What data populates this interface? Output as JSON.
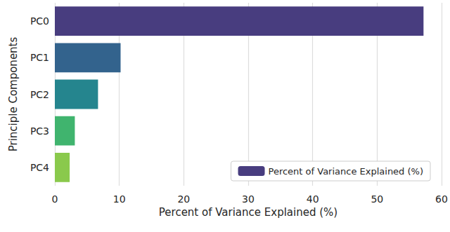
{
  "chart_data": {
    "type": "bar",
    "orientation": "horizontal",
    "x_label": "Percent of Variance Explained (%)",
    "y_label": "Principle Components",
    "categories": [
      "PC0",
      "PC1",
      "PC2",
      "PC3",
      "PC4"
    ],
    "series": [
      {
        "name": "Percent of Variance Explained (%)",
        "values": [
          57.2,
          10.2,
          6.7,
          3.1,
          2.3
        ]
      }
    ],
    "colors": [
      "#483d7f",
      "#33638d",
      "#25858e",
      "#40b46e",
      "#8ac94c"
    ],
    "xlim": [
      0,
      60
    ],
    "xticks": [
      0,
      10,
      20,
      30,
      40,
      50,
      60
    ],
    "grid": true,
    "legend": "lower right"
  }
}
